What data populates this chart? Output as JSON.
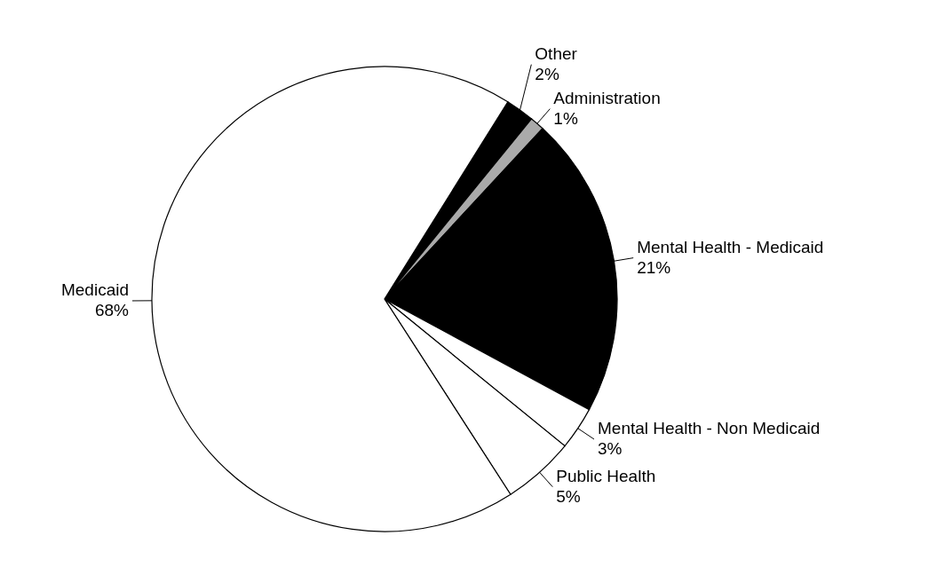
{
  "chart_data": {
    "type": "pie",
    "categories": [
      "Other",
      "Administration",
      "Mental Health - Medicaid",
      "Mental Health - Non Medicaid",
      "Public Health",
      "Medicaid"
    ],
    "values": [
      2,
      1,
      21,
      3,
      5,
      68
    ],
    "value_labels": [
      "2%",
      "1%",
      "21%",
      "3%",
      "5%",
      "68%"
    ],
    "colors": [
      "#000000",
      "#aaaaaa",
      "#000000",
      "#ffffff",
      "#ffffff",
      "#ffffff"
    ]
  }
}
